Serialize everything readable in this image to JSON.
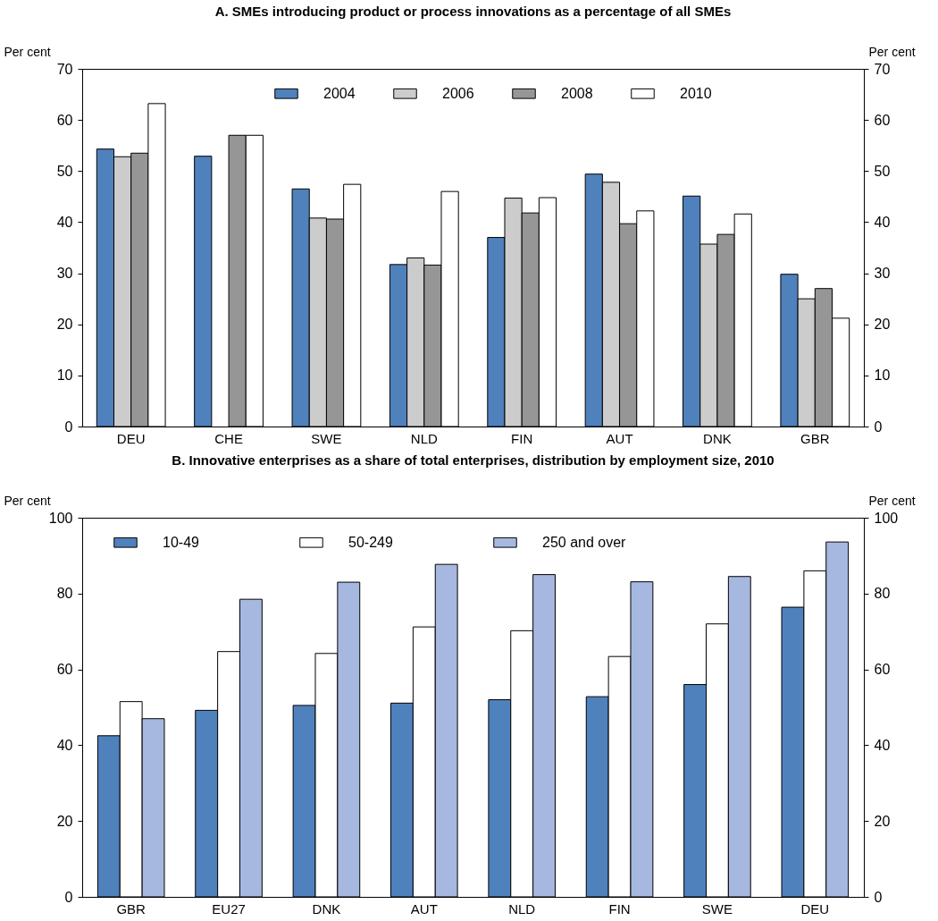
{
  "chart_data": [
    {
      "type": "bar",
      "title": "A. SMEs introducing product or process innovations as a percentage of all SMEs",
      "ylabel": "Per cent",
      "y2label": "Per cent",
      "categories": [
        "DEU",
        "CHE",
        "SWE",
        "NLD",
        "FIN",
        "AUT",
        "DNK",
        "GBR"
      ],
      "series": [
        {
          "name": "2004",
          "color": "#4f81bd",
          "values": [
            54.3,
            52.9,
            46.5,
            31.7,
            37,
            49.4,
            45.1,
            29.8
          ]
        },
        {
          "name": "2006",
          "color": "#cccccc",
          "values": [
            52.8,
            null,
            40.8,
            33,
            44.7,
            47.8,
            35.7,
            25
          ]
        },
        {
          "name": "2008",
          "color": "#969696",
          "values": [
            53.5,
            57,
            40.6,
            31.6,
            41.8,
            39.7,
            37.6,
            27
          ]
        },
        {
          "name": "2010",
          "color": "#ffffff",
          "values": [
            63.2,
            57,
            47.4,
            46,
            44.8,
            42.2,
            41.6,
            21.2
          ]
        }
      ],
      "ylim": [
        0,
        70
      ],
      "yticks": [
        0,
        10,
        20,
        30,
        40,
        50,
        60,
        70
      ],
      "y2lim": [
        0,
        70
      ],
      "y2ticks": [
        0,
        10,
        20,
        30,
        40,
        50,
        60,
        70
      ],
      "grid": false,
      "legend": "top"
    },
    {
      "type": "bar",
      "title": "B. Innovative enterprises as a share of total enterprises, distribution by employment size, 2010",
      "ylabel": "Per cent",
      "y2label": "Per cent",
      "categories": [
        "GBR",
        "EU27",
        "DNK",
        "AUT",
        "NLD",
        "FIN",
        "SWE",
        "DEU"
      ],
      "series": [
        {
          "name": "10-49",
          "color": "#4f81bd",
          "values": [
            42.5,
            49.2,
            50.5,
            51.1,
            52,
            52.8,
            56,
            76.4
          ]
        },
        {
          "name": "50-249",
          "color": "#ffffff",
          "values": [
            51.5,
            64.7,
            64.2,
            71.2,
            70.2,
            63.4,
            72,
            86
          ]
        },
        {
          "name": "250 and over",
          "color": "#a6b8e0",
          "values": [
            47,
            78.5,
            83,
            87.7,
            85,
            83.1,
            84.5,
            93.6
          ]
        }
      ],
      "ylim": [
        0,
        100
      ],
      "yticks": [
        0,
        20,
        40,
        60,
        80,
        100
      ],
      "y2lim": [
        0,
        100
      ],
      "y2ticks": [
        0,
        20,
        40,
        60,
        80,
        100
      ],
      "grid": false,
      "legend": "top"
    }
  ]
}
